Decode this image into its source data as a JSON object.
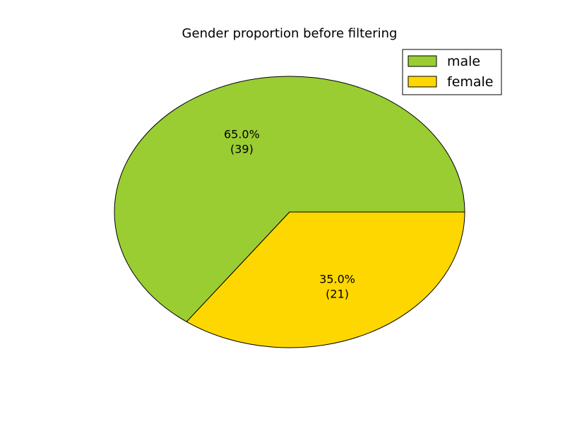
{
  "chart_data": {
    "type": "pie",
    "title": "Gender proportion before filtering",
    "labels": [
      "male",
      "female"
    ],
    "values": [
      39,
      21
    ],
    "percent_labels": [
      "65.0%",
      "35.0%"
    ],
    "count_labels": [
      "(39)",
      "(21)"
    ],
    "colors": [
      "#9acd32",
      "#ffd700"
    ],
    "start_angle_deg": 0,
    "direction": "counterclockwise",
    "legend": {
      "placement": "top-right",
      "entries": [
        "male",
        "female"
      ]
    }
  }
}
